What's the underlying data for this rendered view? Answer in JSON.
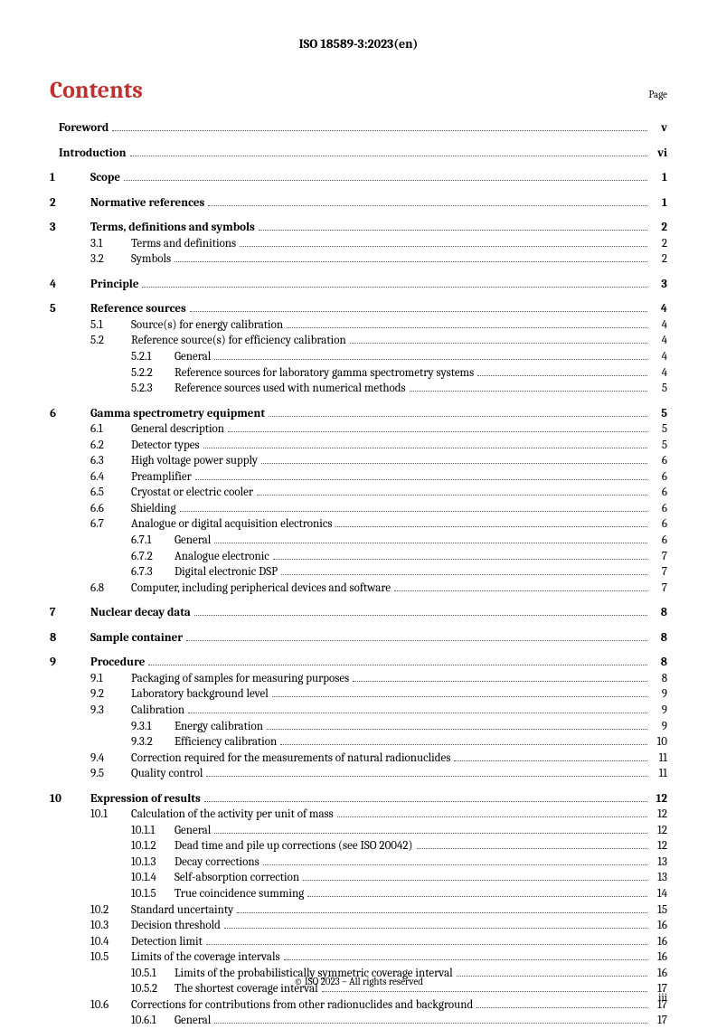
{
  "header": "ISO 18589-3:2023(en)",
  "contents_title": "Contents",
  "page_label": "Page",
  "footer": "© ISO 2023 – All rights reserved",
  "page_number": "iii",
  "toc": [
    {
      "type": "group",
      "rows": [
        {
          "level": 0,
          "num": "",
          "title": "Foreword",
          "page": "v",
          "bold": true,
          "front": true
        }
      ]
    },
    {
      "type": "group",
      "rows": [
        {
          "level": 0,
          "num": "",
          "title": "Introduction",
          "page": "vi",
          "bold": true,
          "front": true
        }
      ]
    },
    {
      "type": "group",
      "rows": [
        {
          "level": 0,
          "num": "1",
          "title": "Scope",
          "page": "1",
          "bold": true
        }
      ]
    },
    {
      "type": "group",
      "rows": [
        {
          "level": 0,
          "num": "2",
          "title": "Normative references",
          "page": "1",
          "bold": true
        }
      ]
    },
    {
      "type": "group",
      "rows": [
        {
          "level": 0,
          "num": "3",
          "title": "Terms, definitions and symbols",
          "page": "2",
          "bold": true
        },
        {
          "level": 1,
          "num": "3.1",
          "title": "Terms and definitions",
          "page": "2"
        },
        {
          "level": 1,
          "num": "3.2",
          "title": "Symbols",
          "page": "2"
        }
      ]
    },
    {
      "type": "group",
      "rows": [
        {
          "level": 0,
          "num": "4",
          "title": "Principle",
          "page": "3",
          "bold": true
        }
      ]
    },
    {
      "type": "group",
      "rows": [
        {
          "level": 0,
          "num": "5",
          "title": "Reference sources",
          "page": "4",
          "bold": true
        },
        {
          "level": 1,
          "num": "5.1",
          "title": "Source(s) for energy calibration",
          "page": "4"
        },
        {
          "level": 1,
          "num": "5.2",
          "title": "Reference source(s) for efficiency calibration",
          "page": "4"
        },
        {
          "level": 2,
          "num": "5.2.1",
          "title": "General",
          "page": "4"
        },
        {
          "level": 2,
          "num": "5.2.2",
          "title": "Reference sources for laboratory gamma spectrometry systems",
          "page": "4"
        },
        {
          "level": 2,
          "num": "5.2.3",
          "title": "Reference sources used with numerical methods",
          "page": "5"
        }
      ]
    },
    {
      "type": "group",
      "rows": [
        {
          "level": 0,
          "num": "6",
          "title": "Gamma spectrometry equipment",
          "page": "5",
          "bold": true
        },
        {
          "level": 1,
          "num": "6.1",
          "title": "General description",
          "page": "5"
        },
        {
          "level": 1,
          "num": "6.2",
          "title": "Detector types",
          "page": "5"
        },
        {
          "level": 1,
          "num": "6.3",
          "title": "High voltage power supply",
          "page": "6"
        },
        {
          "level": 1,
          "num": "6.4",
          "title": "Preamplifier",
          "page": "6"
        },
        {
          "level": 1,
          "num": "6.5",
          "title": "Cryostat or electric cooler",
          "page": "6"
        },
        {
          "level": 1,
          "num": "6.6",
          "title": "Shielding",
          "page": "6"
        },
        {
          "level": 1,
          "num": "6.7",
          "title": "Analogue or digital acquisition electronics",
          "page": "6"
        },
        {
          "level": 2,
          "num": "6.7.1",
          "title": "General",
          "page": "6"
        },
        {
          "level": 2,
          "num": "6.7.2",
          "title": "Analogue electronic",
          "page": "7"
        },
        {
          "level": 2,
          "num": "6.7.3",
          "title": "Digital electronic DSP",
          "page": "7"
        },
        {
          "level": 1,
          "num": "6.8",
          "title": "Computer, including peripherical devices and software",
          "page": "7"
        }
      ]
    },
    {
      "type": "group",
      "rows": [
        {
          "level": 0,
          "num": "7",
          "title": "Nuclear decay data",
          "page": "8",
          "bold": true
        }
      ]
    },
    {
      "type": "group",
      "rows": [
        {
          "level": 0,
          "num": "8",
          "title": "Sample container",
          "page": "8",
          "bold": true
        }
      ]
    },
    {
      "type": "group",
      "rows": [
        {
          "level": 0,
          "num": "9",
          "title": "Procedure",
          "page": "8",
          "bold": true
        },
        {
          "level": 1,
          "num": "9.1",
          "title": "Packaging of samples for measuring purposes",
          "page": "8"
        },
        {
          "level": 1,
          "num": "9.2",
          "title": "Laboratory background level",
          "page": "9"
        },
        {
          "level": 1,
          "num": "9.3",
          "title": "Calibration",
          "page": "9"
        },
        {
          "level": 2,
          "num": "9.3.1",
          "title": "Energy calibration",
          "page": "9"
        },
        {
          "level": 2,
          "num": "9.3.2",
          "title": "Efficiency calibration",
          "page": "10"
        },
        {
          "level": 1,
          "num": "9.4",
          "title": "Correction required for the measurements of natural radionuclides",
          "page": "11"
        },
        {
          "level": 1,
          "num": "9.5",
          "title": "Quality control",
          "page": "11"
        }
      ]
    },
    {
      "type": "group",
      "rows": [
        {
          "level": 0,
          "num": "10",
          "title": "Expression of results",
          "page": "12",
          "bold": true
        },
        {
          "level": 1,
          "num": "10.1",
          "title": "Calculation of the activity per unit of mass",
          "page": "12"
        },
        {
          "level": 2,
          "num": "10.1.1",
          "title": "General",
          "page": "12"
        },
        {
          "level": 2,
          "num": "10.1.2",
          "title": "Dead time and pile up corrections (see ISO 20042)",
          "page": "12"
        },
        {
          "level": 2,
          "num": "10.1.3",
          "title": "Decay corrections",
          "page": "13"
        },
        {
          "level": 2,
          "num": "10.1.4",
          "title": "Self-absorption correction",
          "page": "13"
        },
        {
          "level": 2,
          "num": "10.1.5",
          "title": "True coincidence summing",
          "page": "14"
        },
        {
          "level": 1,
          "num": "10.2",
          "title": "Standard uncertainty",
          "page": "15"
        },
        {
          "level": 1,
          "num": "10.3",
          "title": "Decision threshold",
          "page": "16"
        },
        {
          "level": 1,
          "num": "10.4",
          "title": "Detection limit",
          "page": "16"
        },
        {
          "level": 1,
          "num": "10.5",
          "title": "Limits of the coverage intervals",
          "page": "16"
        },
        {
          "level": 2,
          "num": "10.5.1",
          "title": "Limits of the probabilistically symmetric coverage interval",
          "page": "16"
        },
        {
          "level": 2,
          "num": "10.5.2",
          "title": "The shortest coverage interval",
          "page": "17"
        },
        {
          "level": 1,
          "num": "10.6",
          "title": "Corrections for contributions from other radionuclides and background",
          "page": "17"
        },
        {
          "level": 2,
          "num": "10.6.1",
          "title": "General",
          "page": "17"
        }
      ]
    }
  ]
}
